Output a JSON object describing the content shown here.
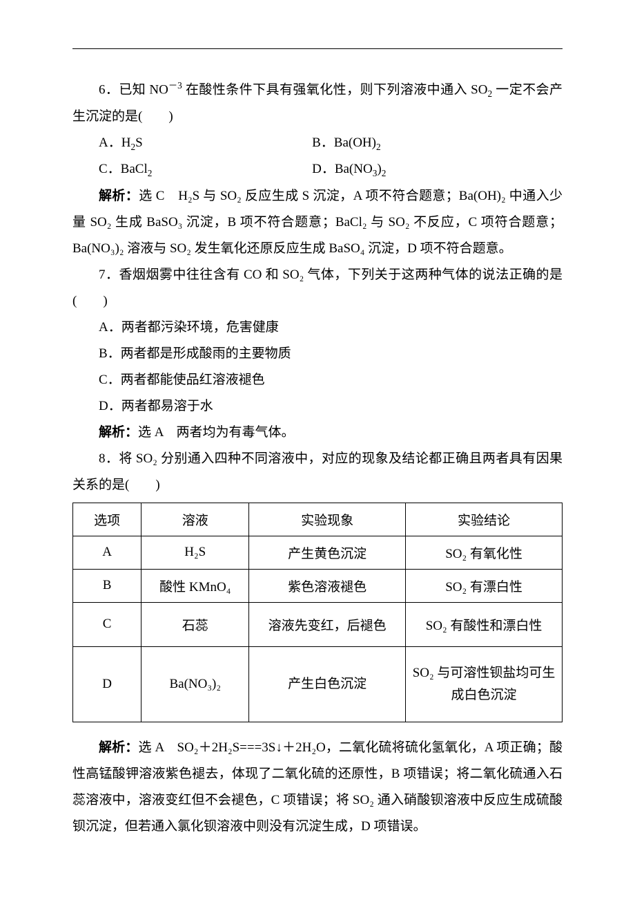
{
  "q6": {
    "stem_a": "6．已知 NO",
    "stem_sup": "－3",
    "stem_b": " 在酸性条件下具有强氧化性，则下列溶液中通入 SO",
    "stem_c": " 一定不会产生沉淀的是(　　)",
    "opts": {
      "A_pre": "A．H",
      "A_sub": "2",
      "A_post": "S",
      "B_pre": "B．Ba(OH)",
      "B_sub": "2",
      "C_pre": "C．BaCl",
      "C_sub": "2",
      "D_pre": "D．Ba(NO",
      "D_sub1": "3",
      "D_post1": ")",
      "D_sub2": "2"
    },
    "ans_label": "解析：",
    "ans_pick": "选 C　",
    "ans_text_1": "H₂S 与 SO₂ 反应生成 S 沉淀，A 项不符合题意；Ba(OH)₂ 中通入少量 SO₂ 生成 BaSO₃ 沉淀，B 项不符合题意；BaCl₂ 与 SO₂ 不反应，C 项符合题意；Ba(NO₃)₂ 溶液与 SO₂ 发生氧化还原反应生成 BaSO₄ 沉淀，D 项不符合题意。"
  },
  "q7": {
    "stem": "7．香烟烟雾中往往含有 CO 和 SO₂ 气体，下列关于这两种气体的说法正确的是(　　)",
    "A": "A．两者都污染环境，危害健康",
    "B": "B．两者都是形成酸雨的主要物质",
    "C": "C．两者都能使品红溶液褪色",
    "D": "D．两者都易溶于水",
    "ans_label": "解析：",
    "ans_pick": "选 A　",
    "ans_text": "两者均为有毒气体。"
  },
  "q8": {
    "stem": "8．将 SO₂ 分别通入四种不同溶液中，对应的现象及结论都正确且两者具有因果关系的是(　　)",
    "headers": [
      "选项",
      "溶液",
      "实验现象",
      "实验结论"
    ],
    "rows": [
      {
        "opt": "A",
        "sol": "H₂S",
        "phen": "产生黄色沉淀",
        "conc": "SO₂ 有氧化性"
      },
      {
        "opt": "B",
        "sol": "酸性 KMnO₄",
        "phen": "紫色溶液褪色",
        "conc": "SO₂ 有漂白性"
      },
      {
        "opt": "C",
        "sol": "石蕊",
        "phen": "溶液先变红，后褪色",
        "conc": "SO₂ 有酸性和漂白性"
      },
      {
        "opt": "D",
        "sol": "Ba(NO₃)₂",
        "phen": "产生白色沉淀",
        "conc": "SO₂ 与可溶性钡盐均可生成白色沉淀"
      }
    ],
    "ans_label": "解析：",
    "ans_pick": "选 A　",
    "ans_text": "SO₂＋2H₂S===3S↓＋2H₂O，二氧化硫将硫化氢氧化，A 项正确；酸性高锰酸钾溶液紫色褪去，体现了二氧化硫的还原性，B 项错误；将二氧化硫通入石蕊溶液中，溶液变红但不会褪色，C 项错误；将 SO₂ 通入硝酸钡溶液中反应生成硫酸钡沉淀，但若通入氯化钡溶液中则没有沉淀生成，D 项错误。"
  }
}
